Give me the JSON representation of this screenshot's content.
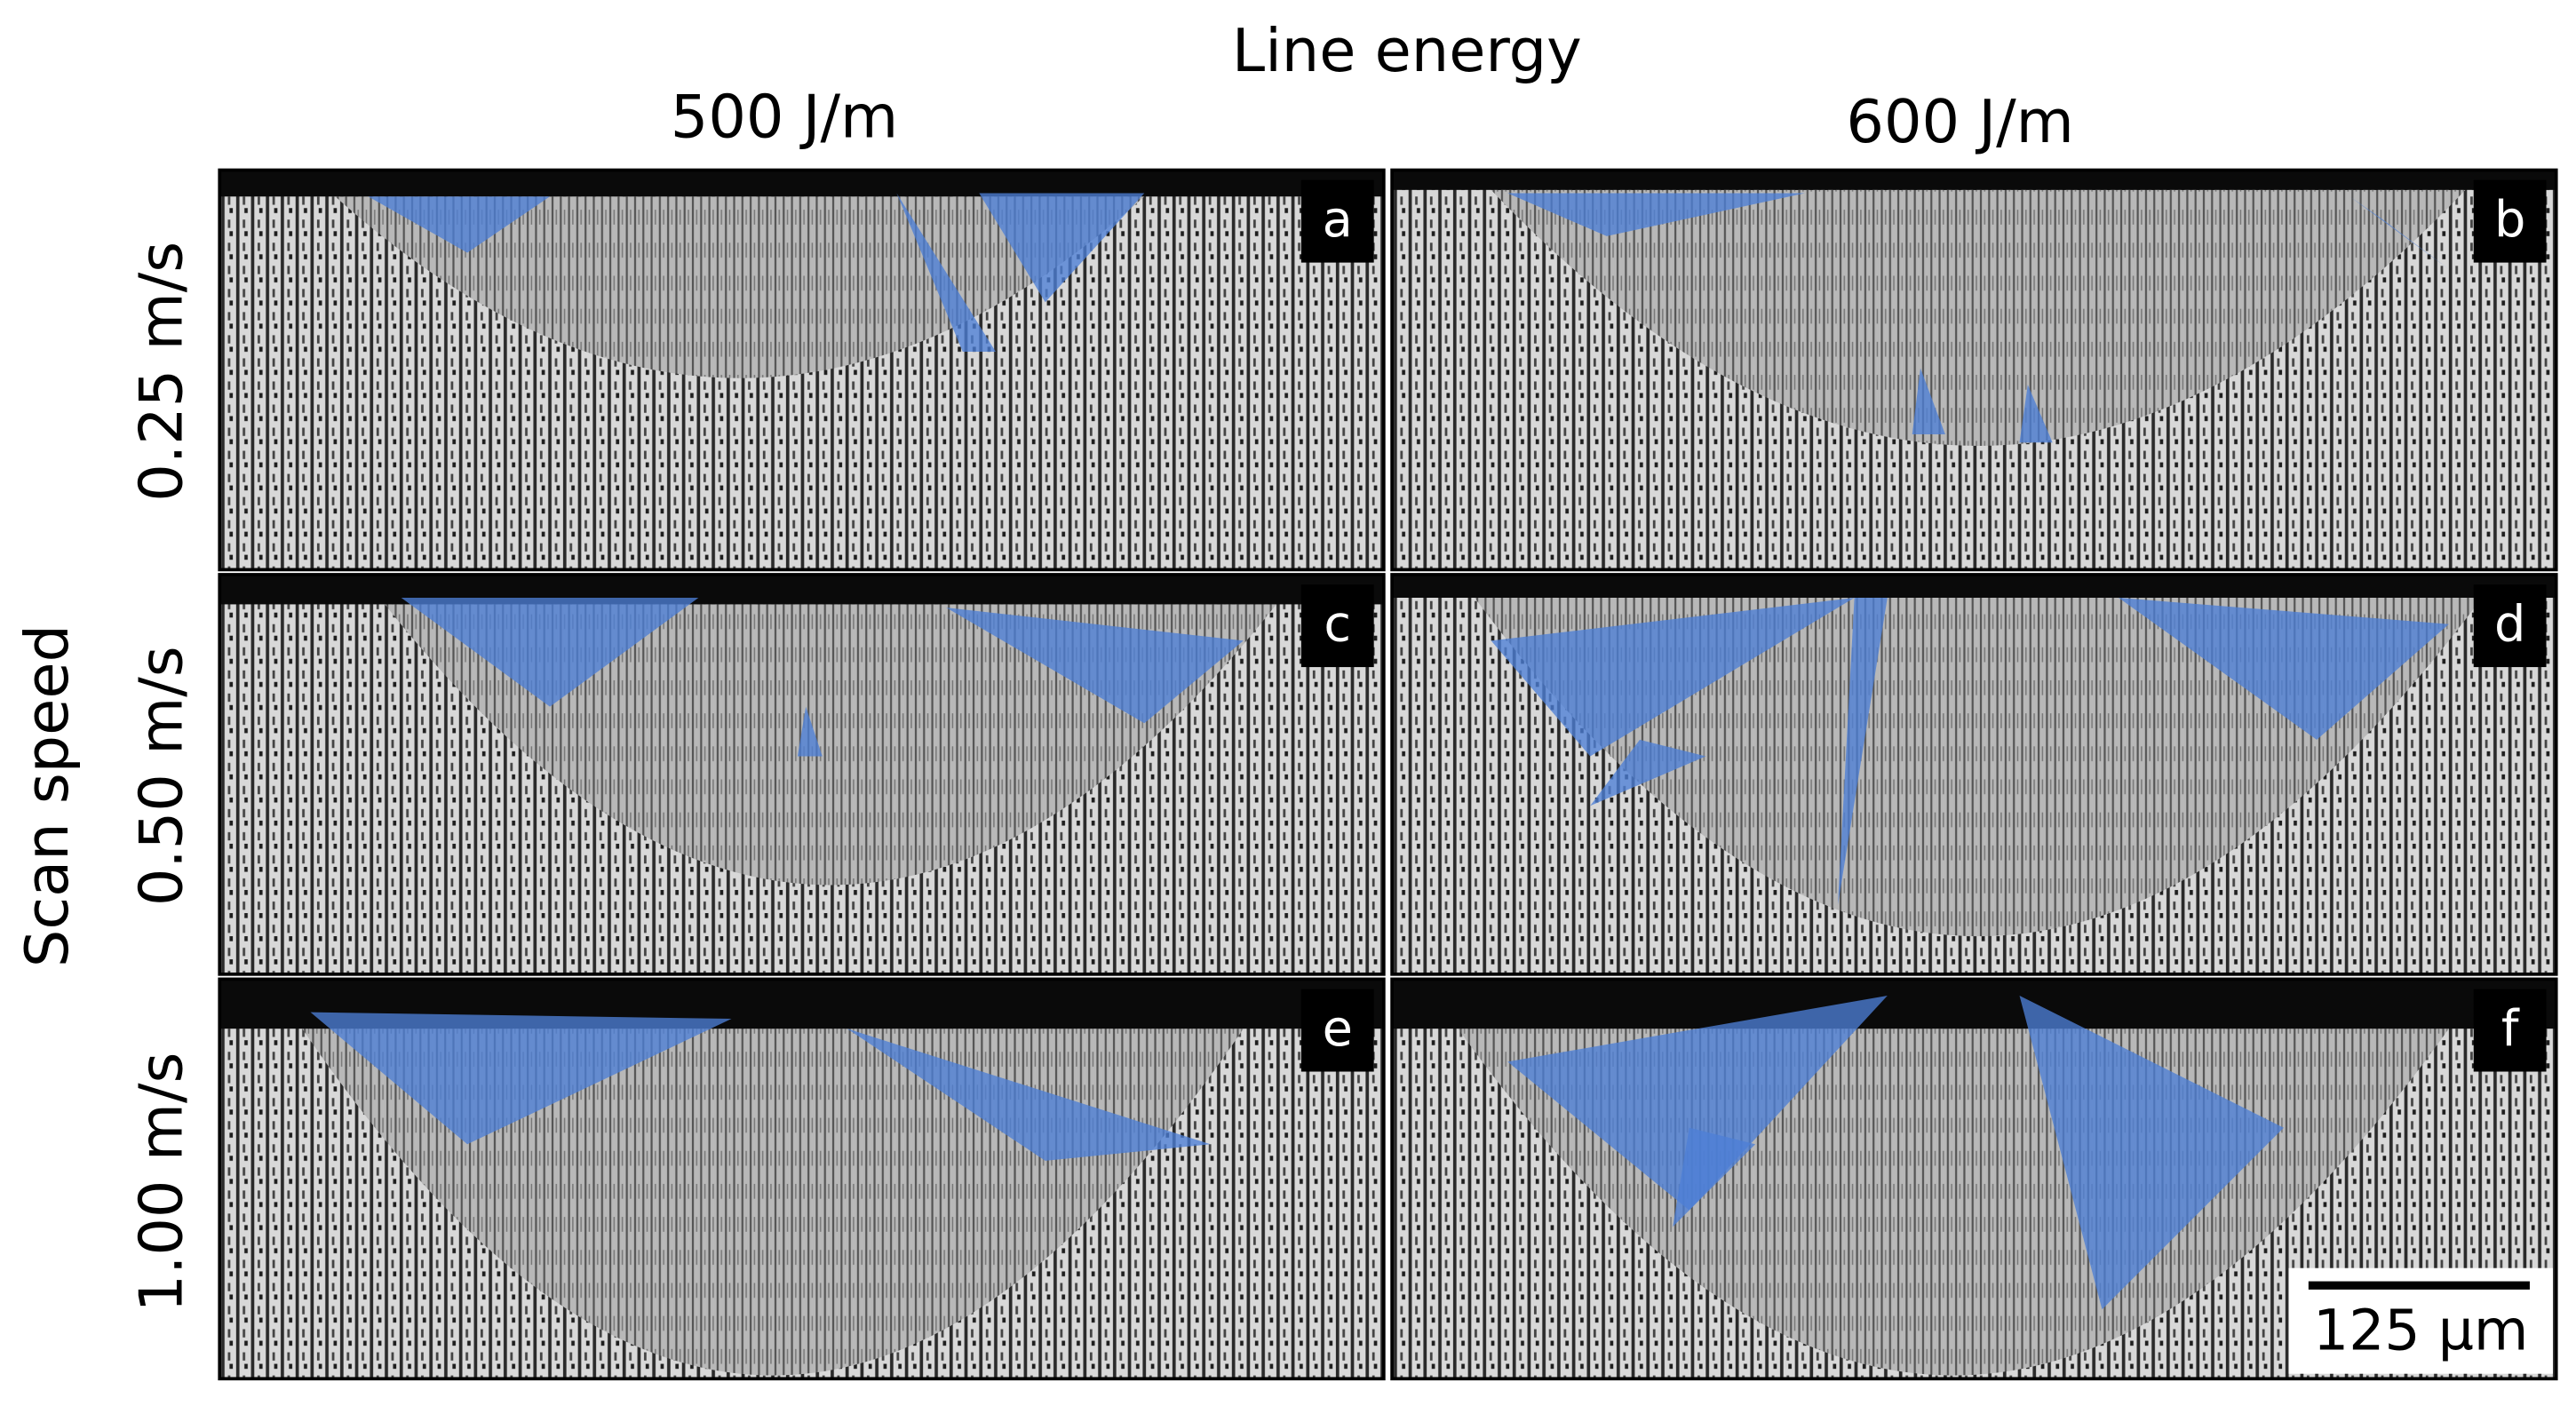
{
  "header": {
    "title": "Line energy",
    "columns": [
      "500 J/m",
      "600 J/m"
    ]
  },
  "row_axis": {
    "label": "Scan speed",
    "rows": [
      "0.25 m/s",
      "0.50 m/s",
      "1.00 m/s"
    ]
  },
  "panels": [
    {
      "letter": "a"
    },
    {
      "letter": "b"
    },
    {
      "letter": "c"
    },
    {
      "letter": "d"
    },
    {
      "letter": "e"
    },
    {
      "letter": "f"
    }
  ],
  "scale_bar": {
    "label": "125 µm"
  }
}
